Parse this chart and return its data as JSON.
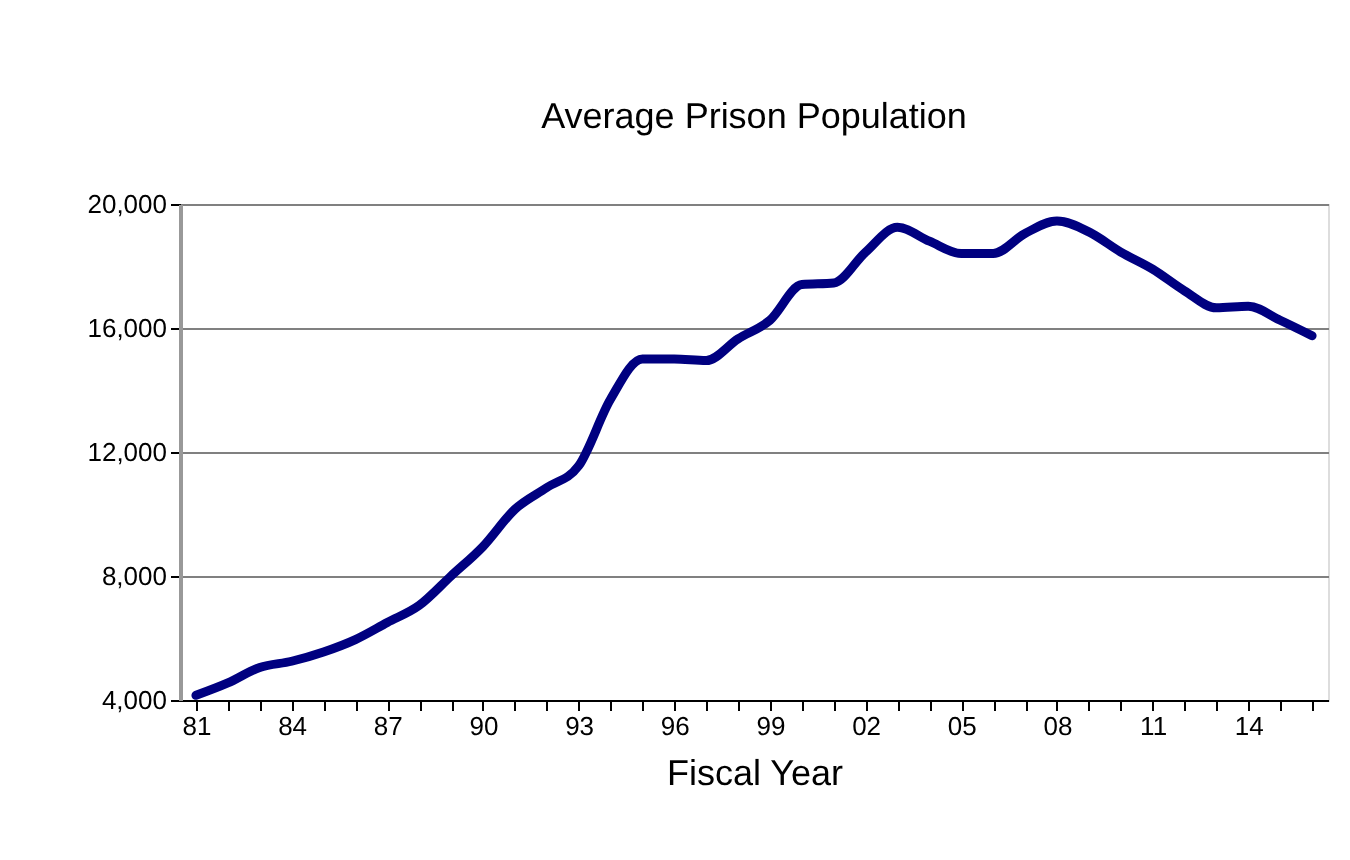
{
  "chart_data": {
    "type": "line",
    "title": "Average Prison Population",
    "xlabel": "Fiscal Year",
    "categories": [
      "81",
      null,
      null,
      "84",
      null,
      null,
      "87",
      null,
      null,
      "90",
      null,
      null,
      "93",
      null,
      null,
      "96",
      null,
      null,
      "99",
      null,
      null,
      "02",
      null,
      null,
      "05",
      null,
      null,
      "08",
      null,
      null,
      "11",
      null,
      null,
      "14",
      null,
      null
    ],
    "series": [
      {
        "color": "#000080",
        "values": [
          4150,
          4550,
          5050,
          5250,
          5550,
          5950,
          6500,
          7050,
          8000,
          8950,
          10150,
          10850,
          11550,
          13700,
          15000,
          15000,
          14950,
          15650,
          16250,
          17400,
          17450,
          18450,
          19250,
          18800,
          18400,
          18400,
          19050,
          19450,
          19100,
          18450,
          17900,
          17200,
          16650,
          16700,
          16250,
          15750
        ]
      }
    ],
    "ylim": [
      4000,
      20000
    ],
    "yticks": [
      {
        "value": 4000,
        "label": "4,000"
      },
      {
        "value": 8000,
        "label": "8,000"
      },
      {
        "value": 12000,
        "label": "12,000"
      },
      {
        "value": 16000,
        "label": "16,000"
      },
      {
        "value": 20000,
        "label": "20,000"
      }
    ],
    "grid": "y",
    "marker": "none",
    "line_style": "solid"
  }
}
